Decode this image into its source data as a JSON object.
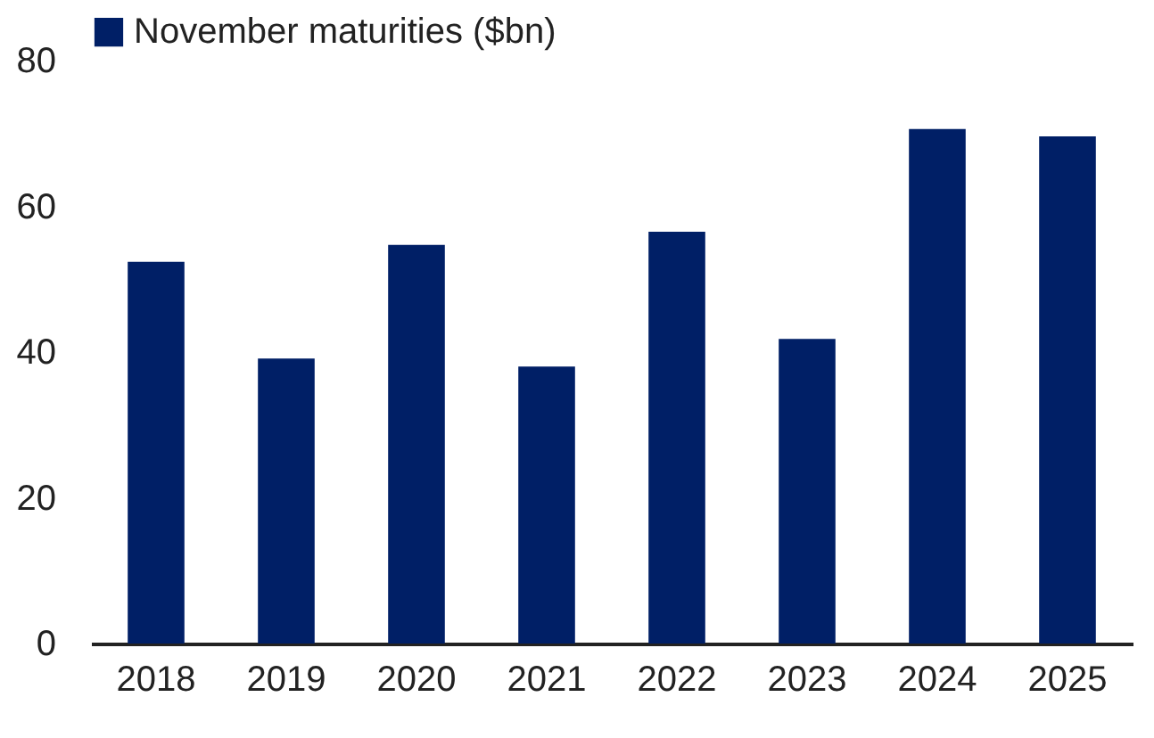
{
  "chart_data": {
    "type": "bar",
    "categories": [
      "2018",
      "2019",
      "2020",
      "2021",
      "2022",
      "2023",
      "2024",
      "2025"
    ],
    "series": [
      {
        "name": "November maturities ($bn)",
        "color": "#001f66",
        "values": [
          52.4,
          39.1,
          54.7,
          38.0,
          56.5,
          41.8,
          70.6,
          69.6
        ]
      }
    ],
    "ylim": [
      0,
      80
    ],
    "yticks": [
      0,
      20,
      40,
      60,
      80
    ],
    "grid": false,
    "legend": "top"
  }
}
